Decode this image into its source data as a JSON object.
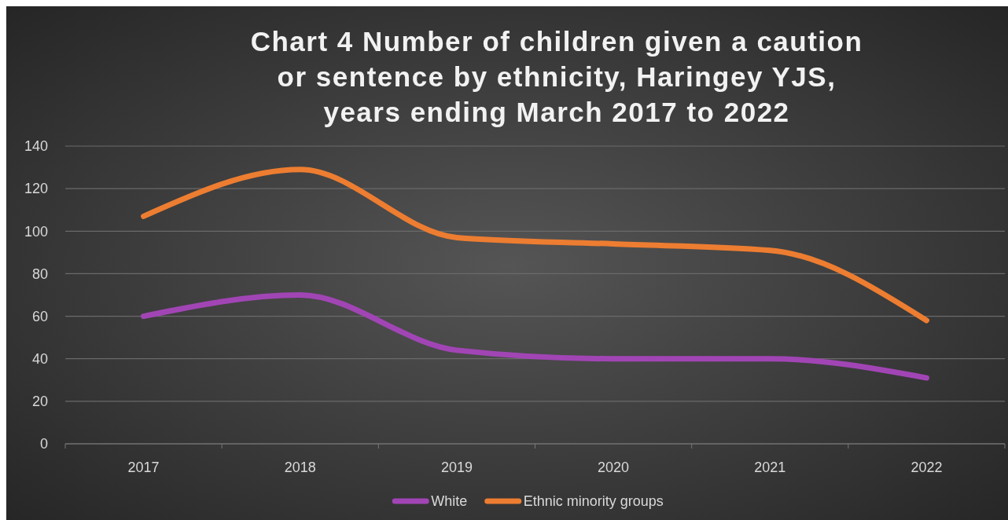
{
  "chart_data": {
    "type": "line",
    "title": "Chart 4 Number of children given a caution or sentence by ethnicity, Haringey YJS, years ending March 2017 to 2022",
    "categories": [
      "2017",
      "2018",
      "2019",
      "2020",
      "2021",
      "2022"
    ],
    "series": [
      {
        "name": "White",
        "color": "#a145b5",
        "values": [
          60,
          70,
          44,
          40,
          40,
          31
        ]
      },
      {
        "name": "Ethnic minority groups",
        "color": "#ed7d31",
        "values": [
          107,
          129,
          97,
          94,
          91,
          58
        ]
      }
    ],
    "ylim": [
      0,
      140
    ],
    "yticks": [
      0,
      20,
      40,
      60,
      80,
      100,
      120,
      140
    ],
    "grid": "y",
    "legend": "bottom",
    "marker": "none",
    "line_style": "solid"
  }
}
